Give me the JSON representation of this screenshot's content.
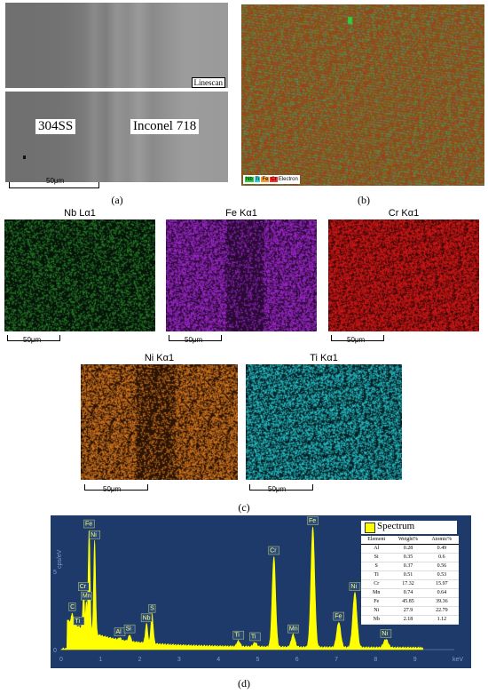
{
  "panel_a": {
    "linescan_label": "Linescan",
    "left_label": "304SS",
    "right_label": "Inconel 718",
    "scale": "50μm",
    "caption": "(a)"
  },
  "panel_b": {
    "legend": [
      "Nb",
      "Ti",
      "Fe",
      "Cr",
      "Electron"
    ],
    "legend_colors": [
      "#2ecc40",
      "#2ad4d4",
      "#ff9a2e",
      "#ff2a2a"
    ],
    "caption": "(b)"
  },
  "maps_row1": [
    {
      "title": "Nb Lα1",
      "scale": "50μm",
      "color": "#2a8a2a"
    },
    {
      "title": "Fe Kα1",
      "scale": "50μm",
      "color": "#a22ad0"
    },
    {
      "title": "Cr Kα1",
      "scale": "50μm",
      "color": "#d61a1a"
    }
  ],
  "maps_row2": [
    {
      "title": "Ni Kα1",
      "scale": "50μm",
      "color": "#d87a22"
    },
    {
      "title": "Ti Kα1",
      "scale": "50μm",
      "color": "#2ac8d0"
    }
  ],
  "caption_c": "(c)",
  "chart_data": {
    "type": "line",
    "title": "",
    "xlabel": "keV",
    "ylabel": "cps/eV",
    "xlim": [
      0,
      10
    ],
    "ylim": [
      0,
      8
    ],
    "x_ticks": [
      "0",
      "1",
      "2",
      "3",
      "4",
      "5",
      "6",
      "7",
      "8",
      "9",
      "keV"
    ],
    "y_ticks": [
      "0",
      "5"
    ],
    "series": [
      {
        "name": "Spectrum",
        "color": "#ffff00"
      }
    ],
    "peaks": [
      {
        "label": "C",
        "x": 0.28,
        "y": 2.3
      },
      {
        "label": "Ti",
        "x": 0.45,
        "y": 1.4
      },
      {
        "label": "Cr",
        "x": 0.57,
        "y": 3.6
      },
      {
        "label": "Mn",
        "x": 0.64,
        "y": 3.0
      },
      {
        "label": "Fe",
        "x": 0.71,
        "y": 7.6
      },
      {
        "label": "Ni",
        "x": 0.85,
        "y": 6.9
      },
      {
        "label": "Al",
        "x": 1.49,
        "y": 0.7
      },
      {
        "label": "Si",
        "x": 1.74,
        "y": 0.9
      },
      {
        "label": "Nb",
        "x": 2.17,
        "y": 1.6
      },
      {
        "label": "S",
        "x": 2.31,
        "y": 2.2
      },
      {
        "label": "Ti",
        "x": 4.51,
        "y": 0.5
      },
      {
        "label": "Ti",
        "x": 4.93,
        "y": 0.4
      },
      {
        "label": "Cr",
        "x": 5.41,
        "y": 5.9
      },
      {
        "label": "Mn",
        "x": 5.9,
        "y": 0.9
      },
      {
        "label": "Fe",
        "x": 6.4,
        "y": 7.8
      },
      {
        "label": "Fe",
        "x": 7.06,
        "y": 1.7
      },
      {
        "label": "Ni",
        "x": 7.47,
        "y": 3.6
      },
      {
        "label": "Ni",
        "x": 8.26,
        "y": 0.6
      }
    ],
    "table": {
      "legend_label": "Spectrum",
      "headers": [
        "Element",
        "Weight%",
        "Atomic%"
      ],
      "rows": [
        [
          "Al",
          "0.28",
          "0.49"
        ],
        [
          "Si",
          "0.35",
          "0.6"
        ],
        [
          "S",
          "0.37",
          "0.56"
        ],
        [
          "Ti",
          "0.51",
          "0.53"
        ],
        [
          "Cr",
          "17.32",
          "15.97"
        ],
        [
          "Mn",
          "0.74",
          "0.64"
        ],
        [
          "Fe",
          "45.85",
          "39.36"
        ],
        [
          "Ni",
          "27.9",
          "22.79"
        ],
        [
          "Nb",
          "2.18",
          "1.12"
        ]
      ]
    }
  },
  "caption_d": "(d)"
}
